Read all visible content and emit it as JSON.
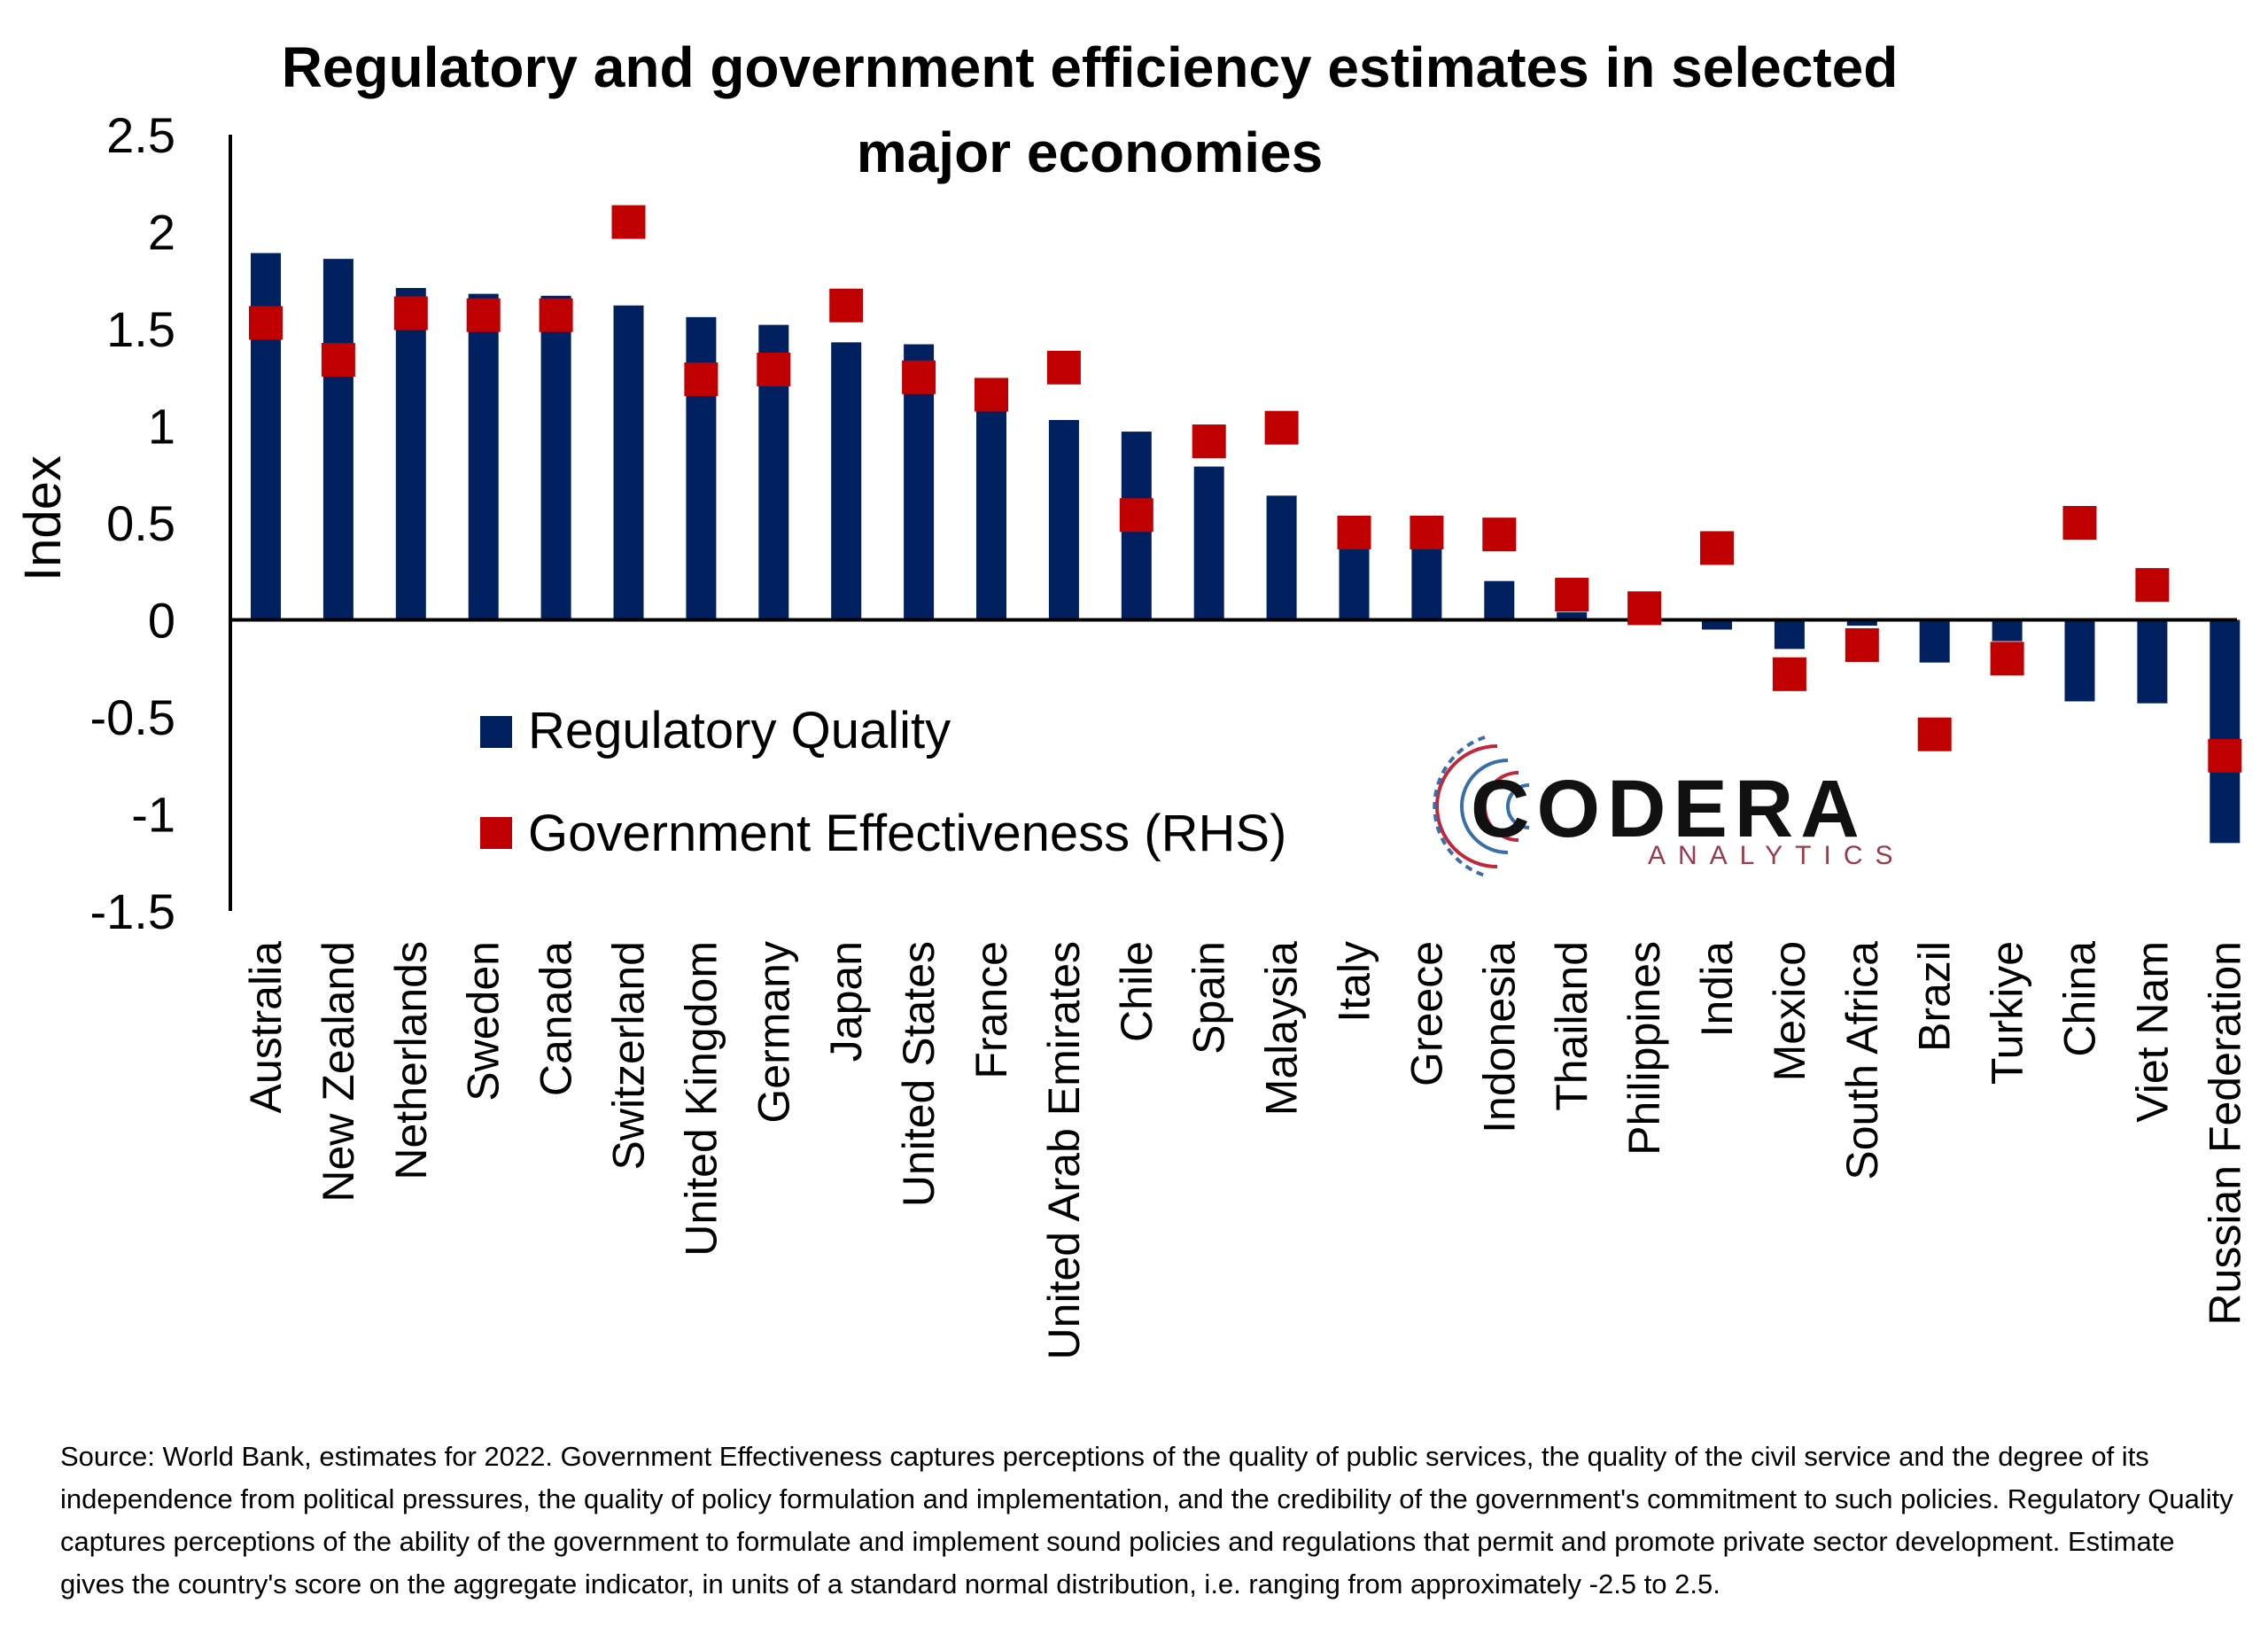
{
  "chart_data": {
    "type": "bar",
    "title": "Regulatory and government efficiency estimates in selected major economies",
    "ylabel": "Index",
    "xlabel": "",
    "ylim": [
      -1.5,
      2.5
    ],
    "yticks": [
      "2.5",
      "2",
      "1.5",
      "1",
      "0.5",
      "0",
      "-0.5",
      "-1",
      "-1.5"
    ],
    "categories": [
      "Australia",
      "New Zealand",
      "Netherlands",
      "Sweden",
      "Canada",
      "Switzerland",
      "United Kingdom",
      "Germany",
      "Japan",
      "United States",
      "France",
      "United Arab Emirates",
      "Chile",
      "Spain",
      "Malaysia",
      "Italy",
      "Greece",
      "Indonesia",
      "Thailand",
      "Philippines",
      "India",
      "Mexico",
      "South Africa",
      "Brazil",
      "Turkiye",
      "China",
      "Viet Nam",
      "Russian Federation"
    ],
    "series": [
      {
        "name": "Regulatory Quality",
        "mark": "bar",
        "color": "#002060",
        "values": [
          1.89,
          1.86,
          1.71,
          1.68,
          1.67,
          1.62,
          1.56,
          1.52,
          1.43,
          1.42,
          1.19,
          1.03,
          0.97,
          0.79,
          0.64,
          0.41,
          0.39,
          0.2,
          0.04,
          0.01,
          -0.05,
          -0.15,
          -0.03,
          -0.22,
          -0.11,
          -0.42,
          -0.43,
          -1.15
        ]
      },
      {
        "name": "Government Effectiveness (RHS)",
        "mark": "square",
        "color": "#C00000",
        "values": [
          1.53,
          1.34,
          1.58,
          1.57,
          1.57,
          2.05,
          1.24,
          1.29,
          1.62,
          1.25,
          1.16,
          1.3,
          0.54,
          0.92,
          0.99,
          0.45,
          0.45,
          0.44,
          0.13,
          0.06,
          0.37,
          -0.28,
          -0.13,
          -0.59,
          -0.2,
          0.5,
          0.18,
          -0.7
        ]
      }
    ],
    "legend": "bottom-left inside plot",
    "grid": false
  },
  "logo": {
    "name": "CODERA",
    "tagline": "ANALYTICS",
    "colors": {
      "text": "#111111",
      "tagline": "#9a3a4a",
      "mark_red": "#c0283a",
      "mark_blue": "#3a6ea8"
    }
  },
  "source_note": "Source: World Bank, estimates for 2022. Government Effectiveness captures perceptions of the quality of public services, the quality of the civil service and the degree of its independence from political pressures, the quality of policy formulation and implementation, and the credibility of the government's commitment to such policies. Regulatory Quality captures perceptions of the ability of the government to formulate and implement sound policies and regulations that permit and promote private sector development. Estimate gives the country's score on the aggregate indicator, in units of a standard normal distribution, i.e. ranging from approximately -2.5 to 2.5."
}
